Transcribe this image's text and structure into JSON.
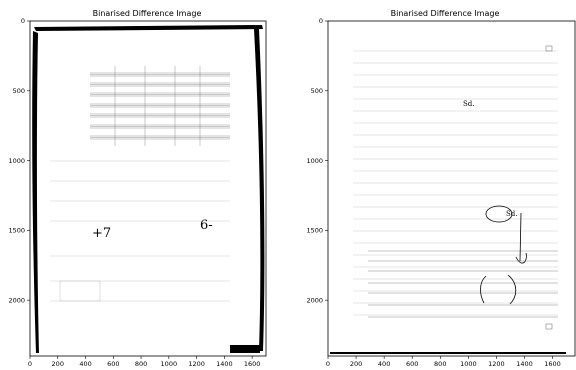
{
  "panels": [
    {
      "id": "left",
      "title": "Binarised Difference Image",
      "x_ticks": [
        "0",
        "200",
        "400",
        "600",
        "800",
        "1000",
        "1200",
        "1400",
        "1600"
      ],
      "y_ticks": [
        "0",
        "500",
        "1000",
        "1500",
        "2000"
      ],
      "xlim": [
        0,
        1700
      ],
      "ylim": [
        2400,
        0
      ],
      "handwritten": [
        "+7",
        "6-"
      ]
    },
    {
      "id": "right",
      "title": "Binarised Difference Image",
      "x_ticks": [
        "0",
        "200",
        "400",
        "600",
        "800",
        "1000",
        "1200",
        "1400",
        "1600"
      ],
      "y_ticks": [
        "0",
        "500",
        "1000",
        "1500",
        "2000"
      ],
      "xlim": [
        0,
        1760
      ],
      "ylim": [
        2400,
        0
      ],
      "handwritten": [
        "Sd.",
        "Sd."
      ]
    }
  ]
}
